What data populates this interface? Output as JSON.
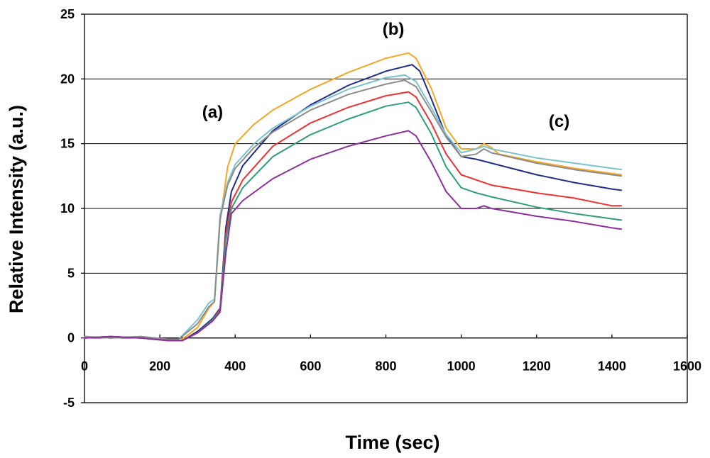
{
  "chart_data": {
    "type": "line",
    "title": "",
    "xlabel": "Time (sec)",
    "ylabel": "Relative Intensity (a.u.)",
    "xlim": [
      0,
      1600
    ],
    "ylim": [
      -5,
      25
    ],
    "xticks": [
      0,
      200,
      400,
      600,
      800,
      1000,
      1200,
      1400,
      1600
    ],
    "yticks": [
      -5,
      0,
      5,
      10,
      15,
      20,
      25
    ],
    "grid": "horizontal",
    "legend": "none",
    "annotations": [
      {
        "text": "(a)",
        "x": 340,
        "y": 17.0
      },
      {
        "text": "(b)",
        "x": 820,
        "y": 23.4
      },
      {
        "text": "(c)",
        "x": 1260,
        "y": 16.3
      }
    ],
    "series": [
      {
        "name": "series-orange",
        "color": "#f5a623",
        "x": [
          0,
          70,
          150,
          220,
          255,
          300,
          330,
          345,
          360,
          380,
          400,
          450,
          500,
          600,
          700,
          800,
          860,
          880,
          920,
          960,
          1000,
          1040,
          1060,
          1080,
          1100,
          1200,
          1300,
          1400,
          1425
        ],
        "y": [
          0.1,
          0.0,
          0.1,
          -0.2,
          -0.2,
          0.8,
          2.3,
          2.8,
          9.0,
          13.2,
          15.0,
          16.5,
          17.6,
          19.2,
          20.5,
          21.6,
          22.0,
          21.6,
          19.3,
          16.2,
          14.6,
          14.6,
          15.0,
          14.7,
          14.2,
          13.6,
          13.1,
          12.7,
          12.6
        ]
      },
      {
        "name": "series-navy",
        "color": "#1f2d8c",
        "x": [
          0,
          70,
          150,
          220,
          260,
          300,
          340,
          360,
          375,
          390,
          420,
          500,
          600,
          700,
          800,
          870,
          890,
          920,
          960,
          1000,
          1040,
          1080,
          1200,
          1300,
          1400,
          1425
        ],
        "y": [
          0.0,
          0.1,
          0.0,
          -0.2,
          -0.2,
          0.5,
          1.5,
          2.3,
          8.5,
          11.3,
          13.3,
          16.0,
          18.0,
          19.5,
          20.6,
          21.1,
          20.6,
          18.5,
          15.6,
          14.0,
          13.8,
          13.5,
          12.6,
          12.0,
          11.5,
          11.4
        ]
      },
      {
        "name": "series-lightblue",
        "color": "#79c3ce",
        "x": [
          0,
          70,
          150,
          220,
          250,
          300,
          330,
          345,
          360,
          380,
          400,
          450,
          500,
          600,
          700,
          800,
          850,
          880,
          920,
          960,
          1000,
          1040,
          1060,
          1080,
          1200,
          1300,
          1400,
          1425
        ],
        "y": [
          0.1,
          0.0,
          0.1,
          -0.1,
          -0.1,
          1.4,
          2.7,
          3.0,
          9.5,
          12.0,
          13.4,
          15.0,
          16.2,
          17.9,
          19.2,
          20.1,
          20.3,
          19.8,
          17.8,
          15.7,
          14.3,
          14.6,
          14.8,
          14.6,
          13.9,
          13.5,
          13.1,
          13.0
        ]
      },
      {
        "name": "series-gray",
        "color": "#8c8c8c",
        "x": [
          0,
          70,
          150,
          220,
          250,
          300,
          330,
          345,
          360,
          380,
          400,
          450,
          500,
          600,
          700,
          800,
          850,
          880,
          920,
          960,
          1000,
          1040,
          1060,
          1080,
          1200,
          1300,
          1400,
          1425
        ],
        "y": [
          0.1,
          0.0,
          0.1,
          -0.1,
          -0.1,
          1.1,
          2.4,
          2.8,
          9.2,
          11.8,
          13.1,
          14.7,
          15.9,
          17.6,
          18.8,
          19.6,
          19.9,
          19.4,
          17.5,
          15.5,
          14.0,
          14.2,
          14.6,
          14.3,
          13.5,
          13.0,
          12.6,
          12.5
        ]
      },
      {
        "name": "series-red",
        "color": "#f03030",
        "x": [
          0,
          70,
          150,
          220,
          260,
          300,
          340,
          360,
          375,
          390,
          420,
          500,
          600,
          700,
          800,
          860,
          880,
          920,
          960,
          1000,
          1040,
          1080,
          1200,
          1300,
          1400,
          1425
        ],
        "y": [
          0.0,
          0.1,
          0.0,
          -0.2,
          -0.2,
          0.4,
          1.4,
          2.2,
          8.0,
          10.5,
          12.2,
          14.8,
          16.6,
          17.8,
          18.7,
          19.0,
          18.6,
          16.6,
          14.2,
          12.6,
          12.2,
          11.8,
          11.2,
          10.8,
          10.2,
          10.2
        ]
      },
      {
        "name": "series-green",
        "color": "#2e9e78",
        "x": [
          0,
          70,
          150,
          220,
          260,
          300,
          340,
          360,
          375,
          390,
          420,
          500,
          600,
          700,
          800,
          860,
          880,
          920,
          960,
          1000,
          1040,
          1080,
          1200,
          1300,
          1400,
          1425
        ],
        "y": [
          0.0,
          0.1,
          0.0,
          -0.2,
          -0.2,
          0.4,
          1.4,
          2.1,
          7.5,
          10.0,
          11.6,
          14.0,
          15.7,
          16.9,
          17.9,
          18.2,
          17.8,
          15.8,
          13.2,
          11.6,
          11.2,
          10.9,
          10.1,
          9.6,
          9.2,
          9.1
        ]
      },
      {
        "name": "series-purple",
        "color": "#8e2e9e",
        "x": [
          0,
          70,
          150,
          220,
          260,
          300,
          340,
          360,
          375,
          390,
          420,
          500,
          600,
          700,
          800,
          860,
          880,
          920,
          960,
          1000,
          1040,
          1060,
          1080,
          1200,
          1300,
          1400,
          1425
        ],
        "y": [
          0.0,
          0.1,
          0.0,
          -0.2,
          -0.2,
          0.4,
          1.3,
          2.0,
          6.5,
          9.6,
          10.6,
          12.3,
          13.8,
          14.8,
          15.6,
          16.0,
          15.6,
          13.6,
          11.3,
          10.0,
          10.0,
          10.2,
          10.0,
          9.4,
          9.0,
          8.5,
          8.4
        ]
      }
    ]
  }
}
